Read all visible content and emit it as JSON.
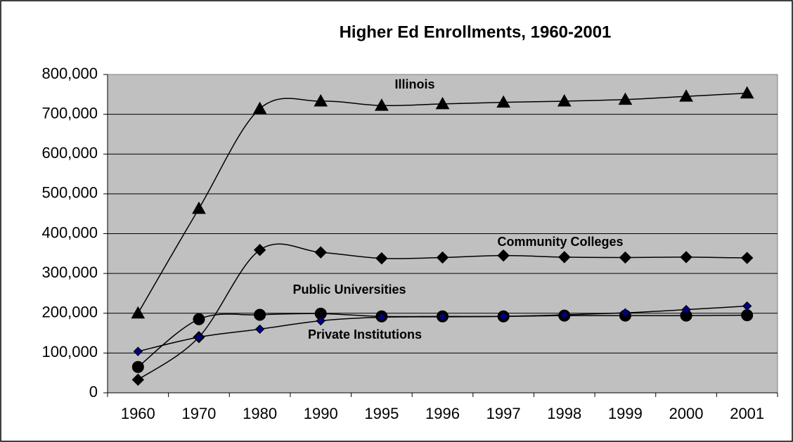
{
  "chart_data": {
    "type": "line",
    "title": "Higher Ed Enrollments, 1960-2001",
    "categories": [
      "1960",
      "1970",
      "1980",
      "1990",
      "1995",
      "1996",
      "1997",
      "1998",
      "1999",
      "2000",
      "2001"
    ],
    "series": [
      {
        "name": "Illinois",
        "color": "#000000",
        "marker": "triangle",
        "marker_color": "#000000",
        "values": [
          200000,
          463000,
          714000,
          733000,
          722000,
          726000,
          730000,
          733000,
          737000,
          745000,
          753000
        ]
      },
      {
        "name": "Community Colleges",
        "color": "#000000",
        "marker": "diamond",
        "marker_color": "#000000",
        "values": [
          33000,
          140000,
          359000,
          353000,
          338000,
          340000,
          345000,
          341000,
          340000,
          341000,
          339000
        ]
      },
      {
        "name": "Public Universities",
        "color": "#000000",
        "marker": "circle",
        "marker_color": "#000000",
        "values": [
          65000,
          185000,
          196000,
          199000,
          192000,
          192000,
          192000,
          194000,
          194000,
          194000,
          195000
        ]
      },
      {
        "name": "Private Institutions",
        "color": "#000000",
        "marker": "small-diamond",
        "marker_color": "#000080",
        "values": [
          104000,
          140000,
          160000,
          181000,
          190000,
          191000,
          192000,
          196000,
          201000,
          209000,
          218000
        ]
      }
    ],
    "ylim": [
      0,
      800000
    ],
    "yticks": [
      0,
      {
        "value": 100000,
        "label": "100,000"
      },
      {
        "value": 200000,
        "label": "200,000"
      },
      {
        "value": 300000,
        "label": "300,000"
      },
      {
        "value": 400000,
        "label": "400,000"
      },
      {
        "value": 500000,
        "label": "500,000"
      },
      {
        "value": 600000,
        "label": "600,000"
      },
      {
        "value": 700000,
        "label": "700,000"
      },
      {
        "value": 800000,
        "label": "800,000"
      }
    ],
    "grid": true,
    "smooth": true,
    "plot_background": "#c0c0c0"
  }
}
